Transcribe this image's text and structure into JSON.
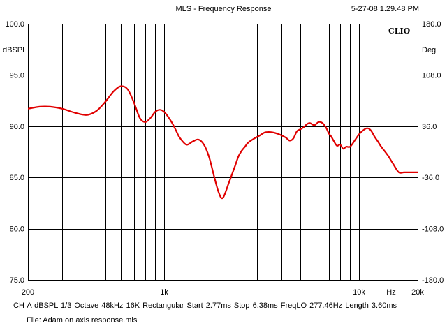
{
  "window": {
    "title": "MLS - Frequency Response",
    "timestamp": "5-27-08 1.29.48 PM"
  },
  "brand": "CLIO",
  "footer": {
    "settings": "CH A    dBSPL   1/3 Octave   48kHz   16K   Rectangular    Start 2.77ms      Stop 6.38ms     FreqLO 277.46Hz     Length 3.60ms",
    "file": "File:  Adam on axis response.mls"
  },
  "chart_data": {
    "type": "line",
    "title": "MLS - Frequency Response",
    "ylabel": "dBSPL",
    "y2label": "Deg",
    "xunit": "Hz",
    "xscale": "log",
    "xlim": [
      200,
      20000
    ],
    "ylim": [
      75,
      100
    ],
    "y2lim": [
      -180,
      180
    ],
    "grid": true,
    "line_color": "#e00000",
    "y_ticks": [
      "100.0",
      "95.0",
      "90.0",
      "85.0",
      "80.0",
      "75.0"
    ],
    "y2_ticks": [
      "180.0",
      "108.0",
      "36.0",
      "-36.0",
      "-108.0",
      "-180.0"
    ],
    "x_ticks": [
      {
        "value": 200,
        "label": "200"
      },
      {
        "value": 1000,
        "label": "1k"
      },
      {
        "value": 10000,
        "label": "10k"
      },
      {
        "value": 20000,
        "label": "20k"
      }
    ],
    "series": [
      {
        "x": [
          200,
          230,
          260,
          300,
          350,
          400,
          450,
          500,
          550,
          600,
          650,
          700,
          750,
          800,
          850,
          900,
          950,
          1000,
          1050,
          1100,
          1150,
          1200,
          1300,
          1400,
          1500,
          1600,
          1700,
          1800,
          1900,
          2000,
          2150,
          2300,
          2400,
          2500,
          2600,
          2700,
          2900,
          3100,
          3300,
          3600,
          3900,
          4200,
          4400,
          4600,
          4800,
          5000,
          5200,
          5400,
          5600,
          5900,
          6200,
          6500,
          6800,
          7000,
          7200,
          7400,
          7700,
          8000,
          8300,
          8600,
          9000,
          9500,
          10000,
          10500,
          11000,
          11500,
          12000,
          12500,
          13000,
          14000,
          15000,
          16000,
          17000,
          18000,
          19000,
          20000
        ],
        "y": [
          91.7,
          91.9,
          91.9,
          91.7,
          91.3,
          91.1,
          91.5,
          92.4,
          93.4,
          93.9,
          93.6,
          92.3,
          90.8,
          90.4,
          90.8,
          91.4,
          91.6,
          91.4,
          90.9,
          90.3,
          89.6,
          88.9,
          88.2,
          88.5,
          88.7,
          88.2,
          87.0,
          85.2,
          83.6,
          83.0,
          84.5,
          86.0,
          87.0,
          87.6,
          88.0,
          88.4,
          88.8,
          89.1,
          89.4,
          89.4,
          89.2,
          88.9,
          88.6,
          88.8,
          89.5,
          89.7,
          89.9,
          90.2,
          90.3,
          90.1,
          90.4,
          90.3,
          89.8,
          89.3,
          89.0,
          88.6,
          88.1,
          88.2,
          87.8,
          88.0,
          88.0,
          88.6,
          89.2,
          89.6,
          89.8,
          89.6,
          89.0,
          88.5,
          88.0,
          87.2,
          86.3,
          85.5,
          85.5,
          85.5,
          85.5,
          85.5
        ]
      }
    ]
  }
}
